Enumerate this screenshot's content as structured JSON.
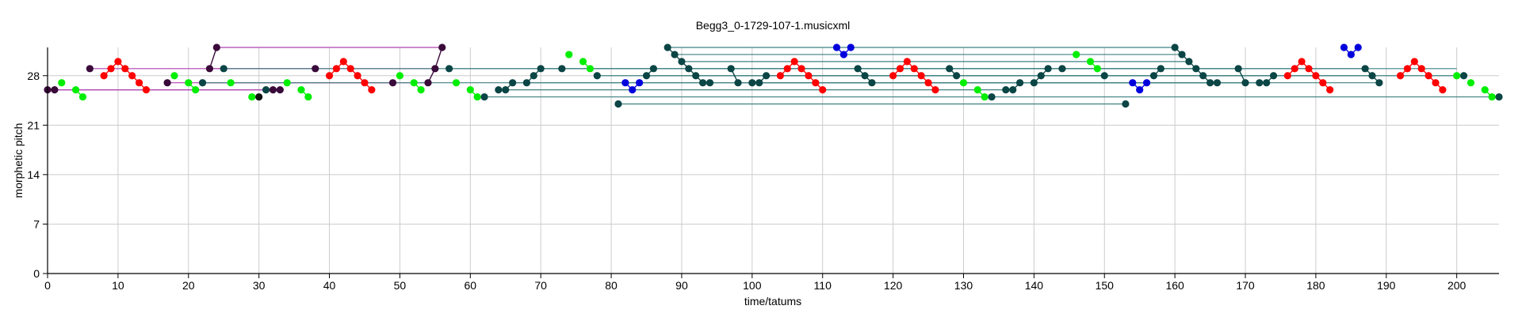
{
  "chart_data": {
    "type": "scatter",
    "title": "Begg3_0-1729-107-1.musicxml",
    "xlabel": "time/tatums",
    "ylabel": "morphetic pitch",
    "xlim": [
      0,
      206
    ],
    "ylim": [
      0,
      32
    ],
    "xticks": [
      "0",
      "10",
      "20",
      "30",
      "40",
      "50",
      "60",
      "70",
      "80",
      "90",
      "100",
      "110",
      "120",
      "130",
      "140",
      "150",
      "160",
      "170",
      "180",
      "190",
      "200"
    ],
    "yticks": [
      "0",
      "7",
      "14",
      "21",
      "28"
    ],
    "grid": true,
    "colors": {
      "red": "#ff0000",
      "green": "#00ee00",
      "dark": "#0b4545",
      "blue": "#0000dd",
      "purple": "#3a0a3a",
      "black": "#111111",
      "magenta": "#b040b0",
      "teal": "#3f8080"
    },
    "series": [
      {
        "color": "red",
        "points": [
          [
            8,
            28
          ],
          [
            9,
            29
          ],
          [
            10,
            30
          ],
          [
            11,
            29
          ],
          [
            12,
            28
          ],
          [
            13,
            27
          ],
          [
            14,
            26
          ],
          [
            40,
            28
          ],
          [
            41,
            29
          ],
          [
            42,
            30
          ],
          [
            43,
            29
          ],
          [
            44,
            28
          ],
          [
            45,
            27
          ],
          [
            46,
            26
          ],
          [
            104,
            28
          ],
          [
            105,
            29
          ],
          [
            106,
            30
          ],
          [
            107,
            29
          ],
          [
            108,
            28
          ],
          [
            109,
            27
          ],
          [
            110,
            26
          ],
          [
            120,
            28
          ],
          [
            121,
            29
          ],
          [
            122,
            30
          ],
          [
            123,
            29
          ],
          [
            124,
            28
          ],
          [
            125,
            27
          ],
          [
            126,
            26
          ],
          [
            176,
            28
          ],
          [
            177,
            29
          ],
          [
            178,
            30
          ],
          [
            179,
            29
          ],
          [
            180,
            28
          ],
          [
            181,
            27
          ],
          [
            182,
            26
          ],
          [
            192,
            28
          ],
          [
            193,
            29
          ],
          [
            194,
            30
          ],
          [
            195,
            29
          ],
          [
            196,
            28
          ],
          [
            197,
            27
          ],
          [
            198,
            26
          ]
        ]
      },
      {
        "color": "green",
        "points": [
          [
            2,
            27
          ],
          [
            4,
            26
          ],
          [
            5,
            25
          ],
          [
            18,
            28
          ],
          [
            20,
            27
          ],
          [
            21,
            26
          ],
          [
            26,
            27
          ],
          [
            29,
            25
          ],
          [
            34,
            27
          ],
          [
            36,
            26
          ],
          [
            37,
            25
          ],
          [
            50,
            28
          ],
          [
            52,
            27
          ],
          [
            53,
            26
          ],
          [
            58,
            27
          ],
          [
            60,
            26
          ],
          [
            61,
            25
          ],
          [
            74,
            31
          ],
          [
            76,
            30
          ],
          [
            77,
            29
          ],
          [
            130,
            27
          ],
          [
            132,
            26
          ],
          [
            133,
            25
          ],
          [
            146,
            31
          ],
          [
            148,
            30
          ],
          [
            149,
            29
          ],
          [
            200,
            28
          ],
          [
            202,
            27
          ],
          [
            204,
            26
          ],
          [
            205,
            25
          ]
        ]
      },
      {
        "color": "blue",
        "points": [
          [
            82,
            27
          ],
          [
            83,
            26
          ],
          [
            84,
            27
          ],
          [
            112,
            32
          ],
          [
            113,
            31
          ],
          [
            114,
            32
          ],
          [
            154,
            27
          ],
          [
            155,
            26
          ],
          [
            156,
            27
          ],
          [
            184,
            32
          ],
          [
            185,
            31
          ],
          [
            186,
            32
          ]
        ]
      },
      {
        "color": "dark",
        "points": [
          [
            22,
            27
          ],
          [
            25,
            29
          ],
          [
            31,
            26
          ],
          [
            57,
            29
          ],
          [
            62,
            25
          ],
          [
            64,
            26
          ],
          [
            65,
            26
          ],
          [
            66,
            27
          ],
          [
            68,
            27
          ],
          [
            69,
            28
          ],
          [
            70,
            29
          ],
          [
            73,
            29
          ],
          [
            78,
            28
          ],
          [
            81,
            24
          ],
          [
            85,
            28
          ],
          [
            86,
            29
          ],
          [
            88,
            32
          ],
          [
            89,
            31
          ],
          [
            90,
            30
          ],
          [
            91,
            29
          ],
          [
            92,
            28
          ],
          [
            93,
            27
          ],
          [
            94,
            27
          ],
          [
            97,
            29
          ],
          [
            98,
            27
          ],
          [
            100,
            27
          ],
          [
            101,
            27
          ],
          [
            102,
            28
          ],
          [
            115,
            29
          ],
          [
            116,
            28
          ],
          [
            117,
            27
          ],
          [
            128,
            29
          ],
          [
            129,
            28
          ],
          [
            134,
            25
          ],
          [
            136,
            26
          ],
          [
            137,
            26
          ],
          [
            138,
            27
          ],
          [
            140,
            27
          ],
          [
            141,
            28
          ],
          [
            142,
            29
          ],
          [
            144,
            29
          ],
          [
            150,
            28
          ],
          [
            153,
            24
          ],
          [
            157,
            28
          ],
          [
            158,
            29
          ],
          [
            160,
            32
          ],
          [
            161,
            31
          ],
          [
            162,
            30
          ],
          [
            163,
            29
          ],
          [
            164,
            28
          ],
          [
            165,
            27
          ],
          [
            166,
            27
          ],
          [
            169,
            29
          ],
          [
            170,
            27
          ],
          [
            172,
            27
          ],
          [
            173,
            27
          ],
          [
            174,
            28
          ],
          [
            187,
            29
          ],
          [
            188,
            28
          ],
          [
            189,
            27
          ],
          [
            201,
            28
          ],
          [
            206,
            25
          ]
        ]
      },
      {
        "color": "purple",
        "points": [
          [
            0,
            26
          ],
          [
            1,
            26
          ],
          [
            6,
            29
          ],
          [
            17,
            27
          ],
          [
            23,
            29
          ],
          [
            24,
            32
          ],
          [
            32,
            26
          ],
          [
            33,
            26
          ],
          [
            38,
            29
          ],
          [
            49,
            27
          ],
          [
            54,
            27
          ],
          [
            55,
            29
          ],
          [
            56,
            32
          ]
        ]
      },
      {
        "color": "black",
        "points": [
          [
            30,
            25
          ]
        ]
      }
    ],
    "segments": [
      {
        "color": "magenta",
        "x1": 24,
        "x2": 56,
        "y": 32
      },
      {
        "color": "magenta",
        "x1": 6,
        "x2": 38,
        "y": 29
      },
      {
        "color": "magenta",
        "x1": 23,
        "x2": 55,
        "y": 29
      },
      {
        "color": "magenta",
        "x1": 17,
        "x2": 49,
        "y": 27
      },
      {
        "color": "magenta",
        "x1": 22,
        "x2": 54,
        "y": 27
      },
      {
        "color": "magenta",
        "x1": 0,
        "x2": 32,
        "y": 26
      },
      {
        "color": "magenta",
        "x1": 1,
        "x2": 33,
        "y": 26
      },
      {
        "color": "teal",
        "x1": 88,
        "x2": 160,
        "y": 32
      },
      {
        "color": "teal",
        "x1": 89,
        "x2": 161,
        "y": 31
      },
      {
        "color": "teal",
        "x1": 90,
        "x2": 162,
        "y": 30
      },
      {
        "color": "teal",
        "x1": 25,
        "x2": 97,
        "y": 29
      },
      {
        "color": "teal",
        "x1": 57,
        "x2": 128,
        "y": 29
      },
      {
        "color": "teal",
        "x1": 70,
        "x2": 142,
        "y": 29
      },
      {
        "color": "teal",
        "x1": 91,
        "x2": 163,
        "y": 29
      },
      {
        "color": "teal",
        "x1": 97,
        "x2": 169,
        "y": 29
      },
      {
        "color": "teal",
        "x1": 115,
        "x2": 187,
        "y": 29
      },
      {
        "color": "teal",
        "x1": 128,
        "x2": 200,
        "y": 29
      },
      {
        "color": "teal",
        "x1": 78,
        "x2": 150,
        "y": 28
      },
      {
        "color": "teal",
        "x1": 85,
        "x2": 157,
        "y": 28
      },
      {
        "color": "teal",
        "x1": 102,
        "x2": 174,
        "y": 28
      },
      {
        "color": "teal",
        "x1": 116,
        "x2": 188,
        "y": 28
      },
      {
        "color": "teal",
        "x1": 129,
        "x2": 201,
        "y": 28
      },
      {
        "color": "teal",
        "x1": 22,
        "x2": 94,
        "y": 27
      },
      {
        "color": "teal",
        "x1": 66,
        "x2": 138,
        "y": 27
      },
      {
        "color": "teal",
        "x1": 93,
        "x2": 165,
        "y": 27
      },
      {
        "color": "teal",
        "x1": 98,
        "x2": 170,
        "y": 27
      },
      {
        "color": "teal",
        "x1": 100,
        "x2": 172,
        "y": 27
      },
      {
        "color": "teal",
        "x1": 117,
        "x2": 189,
        "y": 27
      },
      {
        "color": "teal",
        "x1": 64,
        "x2": 136,
        "y": 26
      },
      {
        "color": "teal",
        "x1": 62,
        "x2": 134,
        "y": 25
      },
      {
        "color": "teal",
        "x1": 134,
        "x2": 206,
        "y": 25
      },
      {
        "color": "teal",
        "x1": 81,
        "x2": 153,
        "y": 24
      }
    ]
  }
}
